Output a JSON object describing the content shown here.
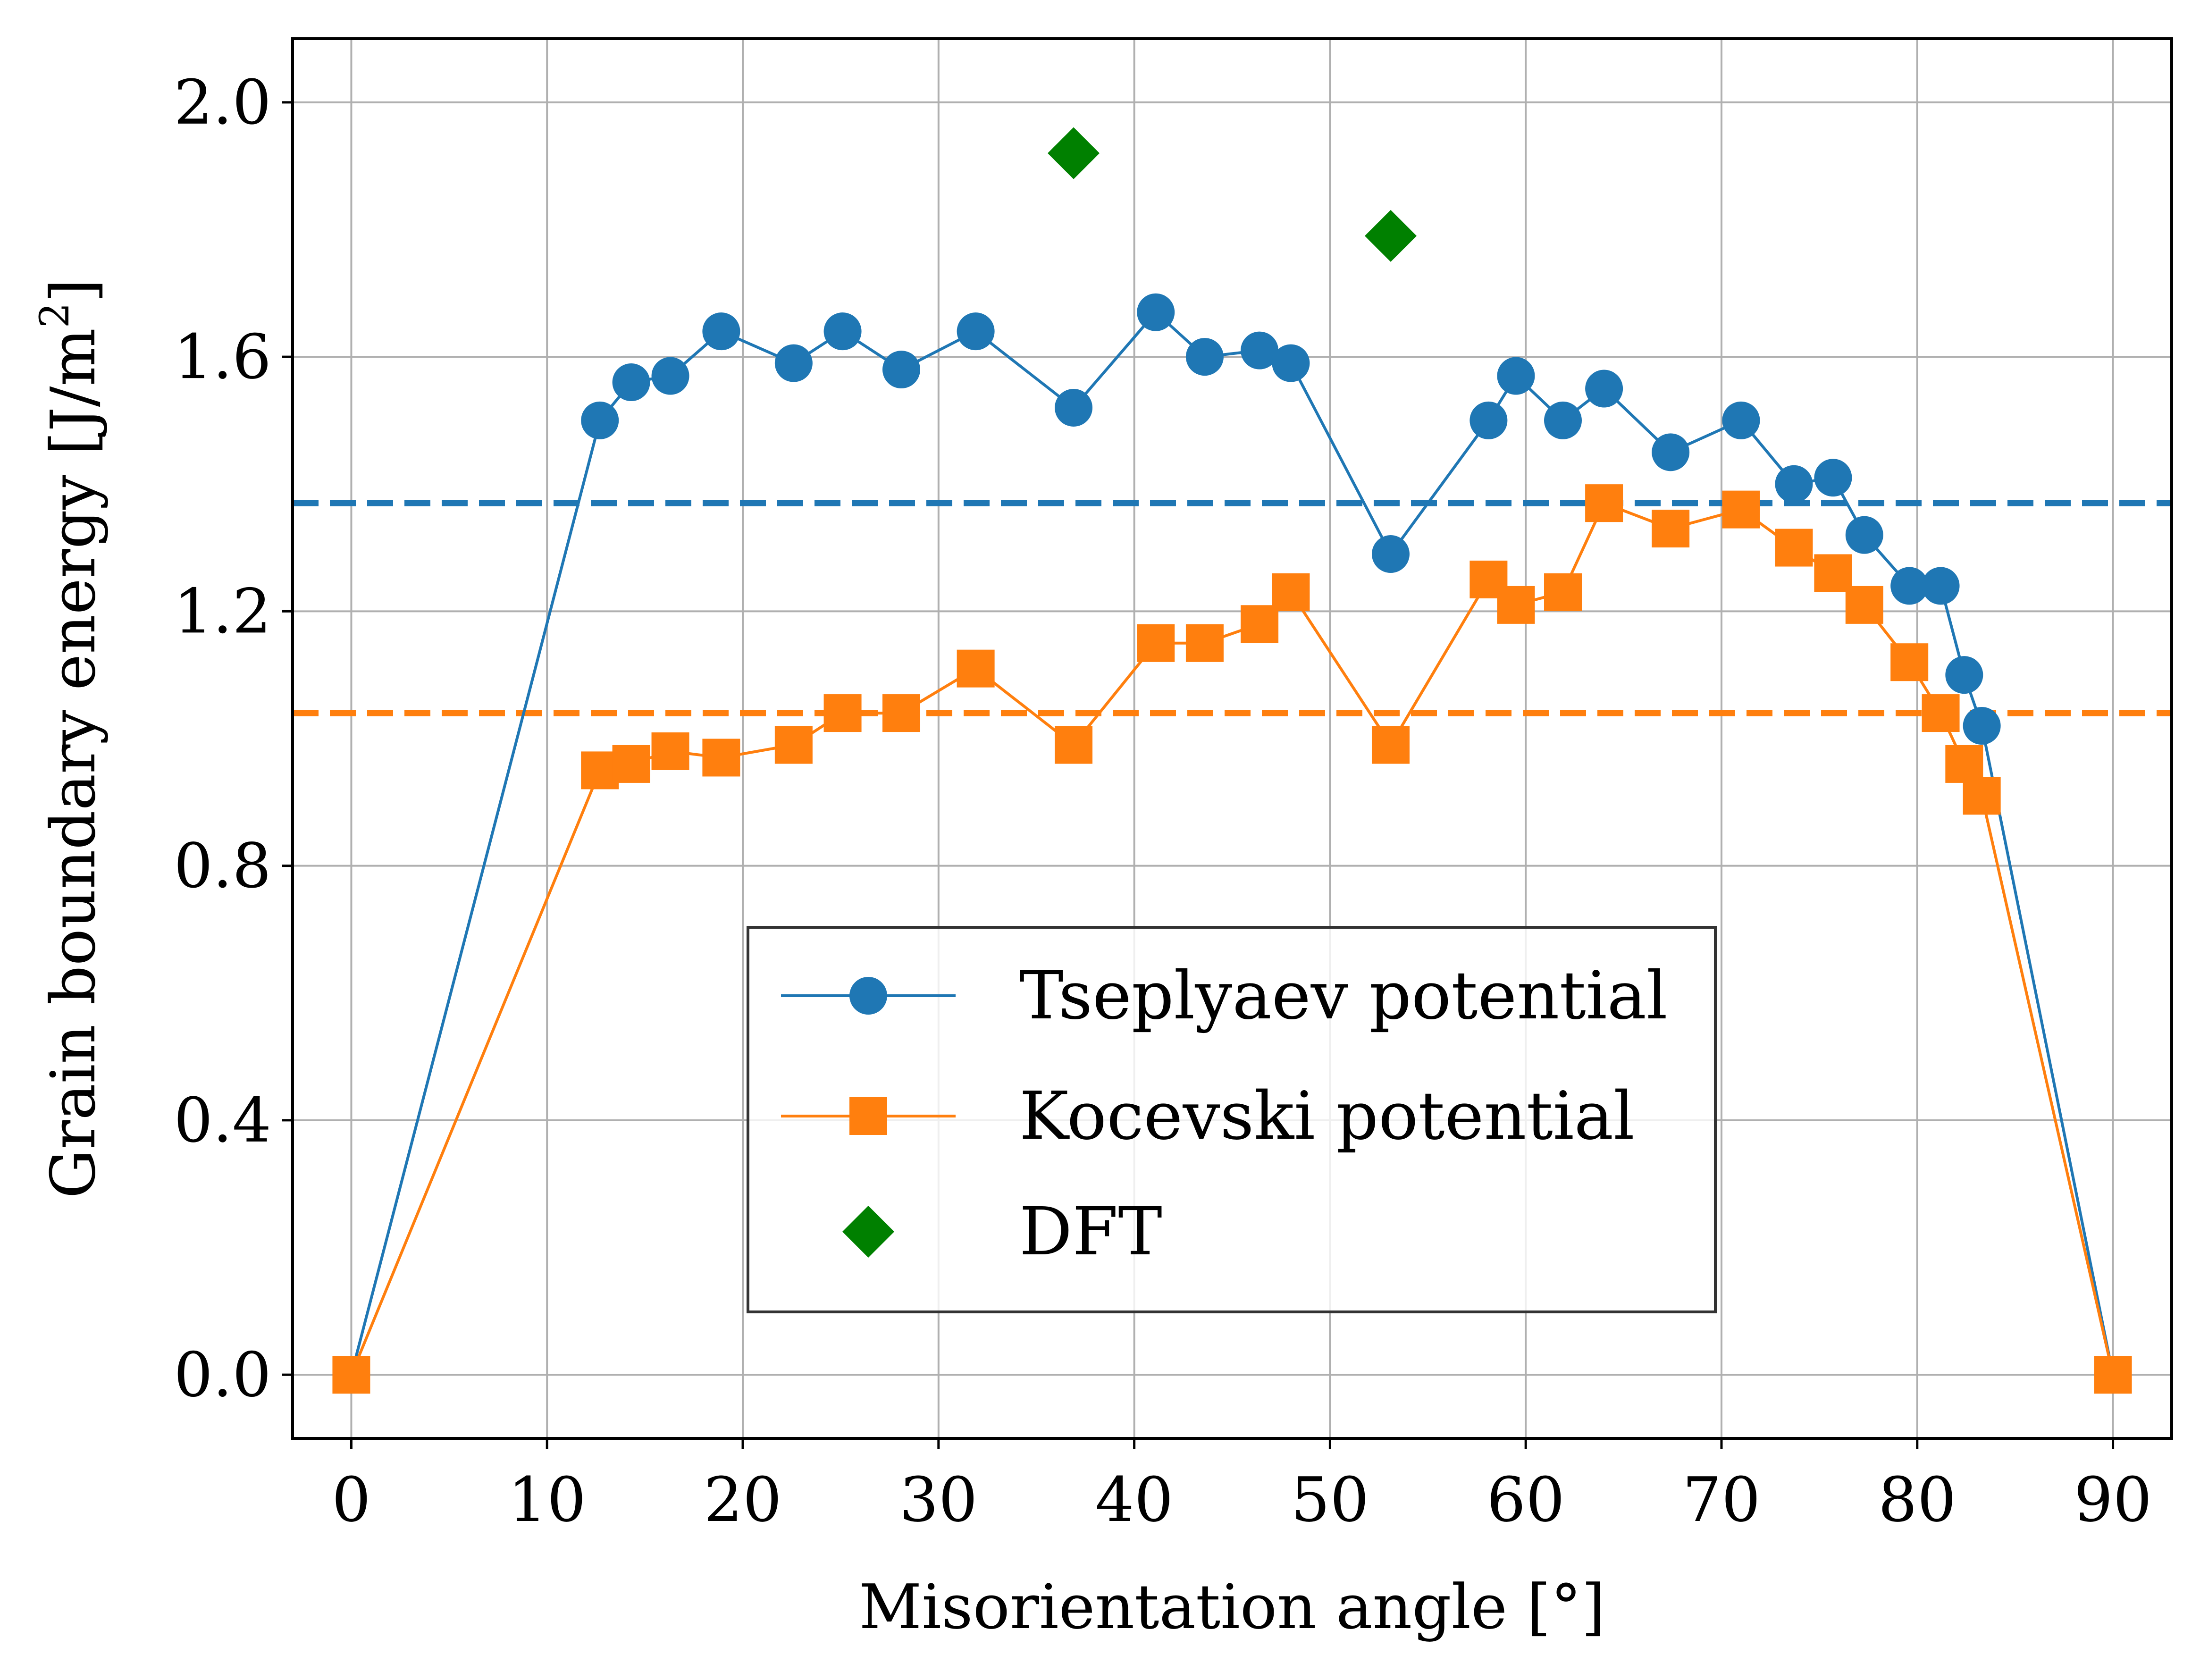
{
  "chart_data": {
    "type": "line",
    "xlabel": "Misorientation angle [°]",
    "ylabel_main": "Grain boundary energy [J/m",
    "ylabel_sup": "2",
    "ylabel_end": "]",
    "xlim": [
      -3,
      93
    ],
    "ylim": [
      -0.1,
      2.1
    ],
    "x_ticks": [
      0,
      10,
      20,
      30,
      40,
      50,
      60,
      70,
      80,
      90
    ],
    "x_tick_labels": [
      "0",
      "10",
      "20",
      "30",
      "40",
      "50",
      "60",
      "70",
      "80",
      "90"
    ],
    "y_ticks": [
      0.0,
      0.4,
      0.8,
      1.2,
      1.6,
      2.0
    ],
    "y_tick_labels": [
      "0.0",
      "0.4",
      "0.8",
      "1.2",
      "1.6",
      "2.0"
    ],
    "grid": true,
    "legend_position": "lower-center",
    "series": [
      {
        "name": "Tseplyaev potential",
        "color": "#1f77b4",
        "marker": "circle",
        "x": [
          0,
          12.7,
          14.3,
          16.3,
          18.9,
          22.6,
          25.1,
          28.1,
          31.9,
          36.9,
          41.1,
          43.6,
          46.4,
          48.0,
          53.1,
          58.1,
          59.5,
          61.9,
          64.0,
          67.4,
          71.0,
          73.7,
          75.7,
          77.3,
          79.6,
          81.2,
          82.4,
          83.3,
          90
        ],
        "y": [
          0.0,
          1.5,
          1.56,
          1.57,
          1.64,
          1.59,
          1.64,
          1.58,
          1.64,
          1.52,
          1.67,
          1.6,
          1.61,
          1.59,
          1.29,
          1.5,
          1.57,
          1.5,
          1.55,
          1.45,
          1.5,
          1.4,
          1.41,
          1.32,
          1.24,
          1.24,
          1.1,
          1.02,
          0.0
        ]
      },
      {
        "name": "Kocevski potential",
        "color": "#ff7f0e",
        "marker": "square",
        "x": [
          0,
          12.7,
          14.3,
          16.3,
          18.9,
          22.6,
          25.1,
          28.1,
          31.9,
          36.9,
          41.1,
          43.6,
          46.4,
          48.0,
          53.1,
          58.1,
          59.5,
          61.9,
          64.0,
          67.4,
          71.0,
          73.7,
          75.7,
          77.3,
          79.6,
          81.2,
          82.4,
          83.3,
          90
        ],
        "y": [
          0.0,
          0.95,
          0.96,
          0.98,
          0.97,
          0.99,
          1.04,
          1.04,
          1.11,
          0.99,
          1.15,
          1.15,
          1.18,
          1.23,
          0.99,
          1.25,
          1.21,
          1.23,
          1.37,
          1.33,
          1.36,
          1.3,
          1.26,
          1.21,
          1.12,
          1.04,
          0.96,
          0.91,
          0.0
        ]
      },
      {
        "name": "DFT",
        "color": "#008000",
        "marker": "diamond",
        "x": [
          36.9,
          53.1
        ],
        "y": [
          1.92,
          1.79
        ]
      }
    ],
    "reference_lines": [
      {
        "y": 1.37,
        "color": "#1f77b4",
        "style": "dashed"
      },
      {
        "y": 1.04,
        "color": "#ff7f0e",
        "style": "dashed"
      }
    ]
  }
}
